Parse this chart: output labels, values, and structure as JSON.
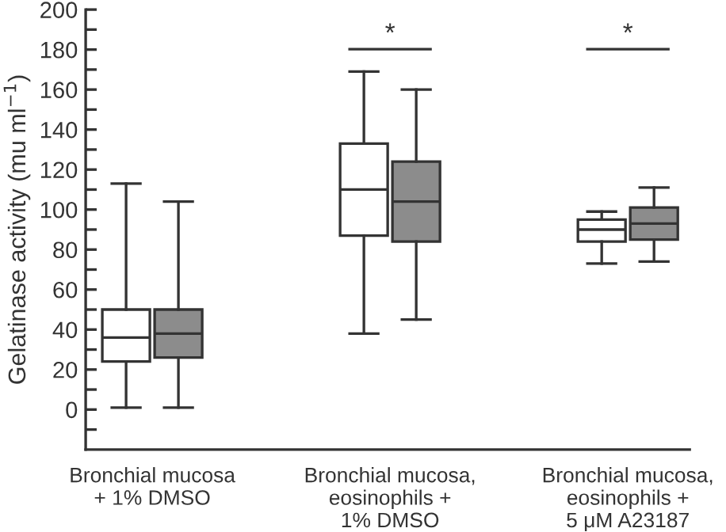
{
  "chart_data": {
    "type": "box",
    "ylabel": "Gelatinase activity (mu ml$^{−1}$)",
    "categories": [
      "Bronchial mucosa\n+ 1% DMSO",
      "Bronchial mucosa,\neosinophils +\n1% DMSO",
      "Bronchial mucosa,\neosinophils +\n5 μM A23187"
    ],
    "series": [
      {
        "color": "#ffffff",
        "boxes": [
          {
            "low": 1,
            "q1": 24,
            "median": 36,
            "q3": 50,
            "high": 113
          },
          {
            "low": 38,
            "q1": 87,
            "median": 110,
            "q3": 133,
            "high": 169
          },
          {
            "low": 73,
            "q1": 84,
            "median": 90,
            "q3": 95,
            "high": 99
          }
        ]
      },
      {
        "color": "#8c8c8c",
        "boxes": [
          {
            "low": 1,
            "q1": 26,
            "median": 38,
            "q3": 50,
            "high": 104
          },
          {
            "low": 45,
            "q1": 84,
            "median": 104,
            "q3": 124,
            "high": 160
          },
          {
            "low": 74,
            "q1": 85,
            "median": 93,
            "q3": 101,
            "high": 111
          }
        ]
      }
    ],
    "ylim": [
      -20,
      200
    ],
    "yticks": [
      0,
      20,
      40,
      60,
      80,
      100,
      120,
      140,
      160,
      180,
      200
    ],
    "annotations": [
      "*",
      "*"
    ],
    "grid": false,
    "legend": false
  }
}
